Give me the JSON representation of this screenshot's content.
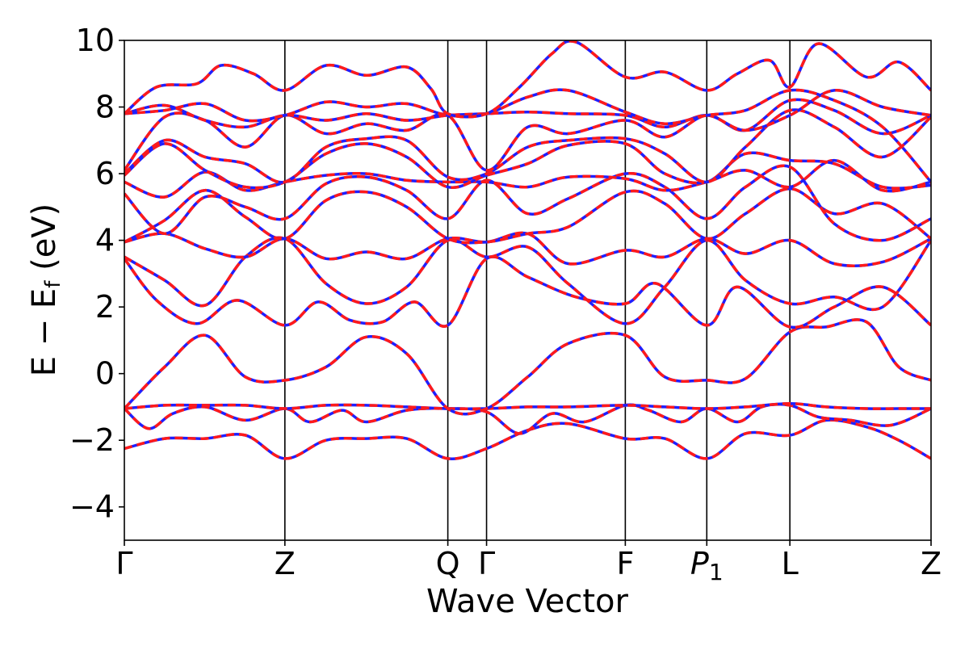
{
  "chart_data": {
    "type": "line",
    "title": "",
    "xlabel": "Wave Vector",
    "ylabel": "E − Ef (eV)",
    "ylabel_parts": {
      "main": "E − E",
      "sub": "f",
      "unit": " (eV)"
    },
    "ylim": [
      -5,
      10
    ],
    "yticks": [
      -4,
      -2,
      0,
      2,
      4,
      6,
      8,
      10
    ],
    "ytick_labels": [
      "−4",
      "−2",
      "0",
      "2",
      "4",
      "6",
      "8",
      "10"
    ],
    "xlim": [
      0,
      10
    ],
    "high_symmetry_points": [
      {
        "label": "Γ",
        "x": 0.0
      },
      {
        "label": "Z",
        "x": 1.99
      },
      {
        "label": "Q",
        "x": 4.01
      },
      {
        "label": "Γ",
        "x": 4.49
      },
      {
        "label": "F",
        "x": 6.21
      },
      {
        "label": "P1",
        "x": 7.22,
        "label_parts": {
          "main": "P",
          "sub": "1"
        }
      },
      {
        "label": "L",
        "x": 8.25
      },
      {
        "label": "Z",
        "x": 10.0
      }
    ],
    "line_styles": [
      {
        "name": "blue solid",
        "color": "#1f1fff",
        "dash": "solid"
      },
      {
        "name": "red dashed",
        "color": "#ff1a1a",
        "dash": "dashed"
      }
    ],
    "grid": false,
    "legend": "none",
    "bands": [
      {
        "x": [
          0,
          0.5,
          1.0,
          1.5,
          1.99,
          2.5,
          3.0,
          3.5,
          4.01,
          4.49,
          5.0,
          5.5,
          6.21,
          6.7,
          7.22,
          7.7,
          8.25,
          8.7,
          9.2,
          9.6,
          10.0
        ],
        "y": [
          -2.25,
          -1.95,
          -1.95,
          -1.85,
          -2.55,
          -2.0,
          -1.95,
          -1.95,
          -2.55,
          -2.25,
          -1.7,
          -1.5,
          -1.95,
          -1.95,
          -2.55,
          -1.8,
          -1.85,
          -1.4,
          -1.6,
          -2.0,
          -2.55
        ]
      },
      {
        "x": [
          0,
          0.3,
          0.6,
          1.0,
          1.5,
          1.99,
          2.3,
          2.7,
          3.0,
          3.5,
          4.01,
          4.49,
          4.9,
          5.3,
          5.7,
          6.21,
          6.5,
          6.9,
          7.22,
          7.6,
          7.9,
          8.25,
          8.6,
          9.0,
          9.5,
          10.0
        ],
        "y": [
          -1.05,
          -1.65,
          -1.2,
          -1.0,
          -1.4,
          -1.05,
          -1.45,
          -1.1,
          -1.45,
          -1.1,
          -1.05,
          -1.15,
          -1.8,
          -1.2,
          -1.45,
          -0.95,
          -1.1,
          -1.45,
          -1.05,
          -1.45,
          -1.0,
          -0.95,
          -1.3,
          -1.4,
          -1.55,
          -1.05
        ]
      },
      {
        "x": [
          0,
          0.5,
          1.0,
          1.5,
          1.99,
          2.5,
          3.0,
          3.5,
          4.01,
          4.49,
          5.0,
          5.5,
          6.21,
          6.7,
          7.22,
          7.7,
          8.25,
          8.7,
          9.2,
          9.6,
          10.0
        ],
        "y": [
          -1.05,
          -0.95,
          -0.95,
          -0.95,
          -1.05,
          -0.95,
          -0.95,
          -1.0,
          -1.05,
          -1.05,
          -1.0,
          -1.0,
          -0.95,
          -1.0,
          -1.05,
          -1.0,
          -0.9,
          -1.0,
          -1.05,
          -1.05,
          -1.05
        ]
      },
      {
        "x": [
          0,
          0.5,
          1.0,
          1.5,
          1.99,
          2.5,
          3.0,
          3.5,
          4.01,
          4.49,
          5.0,
          5.5,
          6.21,
          6.7,
          7.22,
          7.7,
          8.25,
          8.7,
          9.2,
          9.6,
          10.0
        ],
        "y": [
          -1.05,
          0.2,
          1.15,
          -0.1,
          -0.2,
          0.2,
          1.1,
          0.6,
          -1.05,
          -1.05,
          -0.1,
          0.9,
          1.15,
          -0.1,
          -0.2,
          -0.15,
          1.25,
          1.4,
          1.55,
          0.2,
          -0.2
        ]
      },
      {
        "x": [
          0,
          0.4,
          0.9,
          1.4,
          1.99,
          2.4,
          2.8,
          3.2,
          3.6,
          4.01,
          4.49,
          5.0,
          5.6,
          6.21,
          6.6,
          7.22,
          7.6,
          8.25,
          8.8,
          9.4,
          10.0
        ],
        "y": [
          3.45,
          2.2,
          1.5,
          2.2,
          1.45,
          2.15,
          1.6,
          1.55,
          2.15,
          1.45,
          3.45,
          2.9,
          2.3,
          2.1,
          2.7,
          1.45,
          2.6,
          1.4,
          2.0,
          2.6,
          1.45
        ]
      },
      {
        "x": [
          0,
          0.5,
          1.0,
          1.5,
          1.99,
          2.5,
          3.0,
          3.5,
          4.01,
          4.49,
          5.0,
          5.5,
          6.21,
          6.7,
          7.22,
          7.7,
          8.25,
          8.8,
          9.4,
          10.0
        ],
        "y": [
          3.5,
          2.8,
          2.05,
          3.5,
          4.05,
          2.7,
          2.1,
          2.6,
          4.0,
          3.5,
          3.8,
          2.7,
          1.5,
          2.6,
          4.0,
          2.8,
          2.1,
          2.3,
          2.0,
          4.0
        ]
      },
      {
        "x": [
          0,
          0.5,
          1.0,
          1.5,
          1.99,
          2.5,
          3.0,
          3.5,
          4.01,
          4.49,
          5.0,
          5.5,
          6.21,
          6.7,
          7.22,
          7.7,
          8.25,
          8.8,
          9.4,
          10.0
        ],
        "y": [
          3.95,
          4.2,
          3.75,
          3.5,
          4.05,
          3.45,
          3.65,
          3.45,
          4.05,
          3.95,
          4.2,
          3.3,
          3.7,
          3.5,
          4.05,
          3.6,
          4.0,
          3.3,
          3.35,
          4.05
        ]
      },
      {
        "x": [
          0,
          0.5,
          1.0,
          1.5,
          1.99,
          2.5,
          3.0,
          3.5,
          4.01,
          4.49,
          5.0,
          5.5,
          6.21,
          6.7,
          7.22,
          7.7,
          8.25,
          8.8,
          9.4,
          10.0
        ],
        "y": [
          3.95,
          4.6,
          5.5,
          4.7,
          4.05,
          5.2,
          5.45,
          5.0,
          4.05,
          3.95,
          4.2,
          4.4,
          5.45,
          5.1,
          4.05,
          4.8,
          5.55,
          4.8,
          5.1,
          4.05
        ]
      },
      {
        "x": [
          0,
          0.5,
          1.0,
          1.5,
          1.99,
          2.5,
          3.0,
          3.5,
          4.01,
          4.49,
          5.0,
          5.5,
          6.21,
          6.7,
          7.22,
          7.7,
          8.25,
          8.8,
          9.4,
          10.0
        ],
        "y": [
          5.4,
          4.2,
          5.3,
          5.0,
          4.65,
          5.7,
          5.9,
          5.5,
          4.65,
          5.8,
          4.8,
          5.25,
          6.0,
          5.6,
          4.65,
          5.6,
          6.2,
          4.5,
          4.0,
          4.65
        ]
      },
      {
        "x": [
          0,
          0.5,
          1.0,
          1.5,
          1.99,
          2.5,
          3.0,
          3.5,
          4.01,
          4.49,
          5.0,
          5.5,
          6.21,
          6.7,
          7.22,
          7.7,
          8.25,
          8.8,
          9.4,
          10.0
        ],
        "y": [
          5.75,
          5.3,
          6.05,
          5.5,
          5.75,
          5.95,
          6.0,
          5.8,
          5.75,
          5.75,
          5.6,
          5.9,
          5.85,
          5.5,
          5.75,
          6.1,
          5.6,
          6.4,
          5.5,
          5.75
        ]
      },
      {
        "x": [
          0,
          0.5,
          1.0,
          1.5,
          1.99,
          2.5,
          3.0,
          3.5,
          4.01,
          4.49,
          5.0,
          5.5,
          6.21,
          6.7,
          7.22,
          7.7,
          8.25,
          8.8,
          9.4,
          10.0
        ],
        "y": [
          5.95,
          6.9,
          6.1,
          5.6,
          5.75,
          6.6,
          6.9,
          6.5,
          5.6,
          5.95,
          6.3,
          6.85,
          6.9,
          6.0,
          5.75,
          6.6,
          6.4,
          6.3,
          5.6,
          5.65
        ]
      },
      {
        "x": [
          0,
          0.5,
          1.0,
          1.5,
          1.99,
          2.5,
          3.0,
          3.5,
          4.01,
          4.49,
          5.0,
          5.5,
          6.21,
          6.7,
          7.22,
          7.7,
          8.25,
          8.8,
          9.4,
          10.0
        ],
        "y": [
          6.0,
          7.0,
          6.5,
          6.3,
          5.75,
          6.8,
          7.05,
          7.0,
          5.9,
          6.0,
          6.8,
          7.0,
          7.05,
          6.6,
          5.75,
          6.8,
          7.9,
          7.4,
          6.5,
          7.7
        ]
      },
      {
        "x": [
          0,
          0.5,
          1.0,
          1.5,
          1.99,
          2.5,
          3.0,
          3.5,
          4.01,
          4.49,
          5.0,
          5.5,
          6.21,
          6.7,
          7.22,
          7.7,
          8.25,
          8.8,
          9.4,
          10.0
        ],
        "y": [
          6.1,
          7.7,
          7.6,
          6.8,
          7.75,
          7.2,
          7.5,
          7.3,
          7.75,
          6.1,
          7.4,
          7.2,
          7.6,
          7.1,
          7.75,
          7.3,
          8.2,
          7.9,
          7.2,
          7.75
        ]
      },
      {
        "x": [
          0,
          0.5,
          1.0,
          1.5,
          1.99,
          2.5,
          3.0,
          3.5,
          4.01,
          4.49,
          5.0,
          5.5,
          6.21,
          6.7,
          7.22,
          7.7,
          8.25,
          8.8,
          9.4,
          10.0
        ],
        "y": [
          7.8,
          8.05,
          7.6,
          7.4,
          7.75,
          7.6,
          7.8,
          7.6,
          7.75,
          7.8,
          7.85,
          7.8,
          7.75,
          7.4,
          7.75,
          7.3,
          7.75,
          8.5,
          8.0,
          7.75
        ]
      },
      {
        "x": [
          0,
          0.5,
          1.0,
          1.5,
          1.99,
          2.5,
          3.0,
          3.5,
          4.01,
          4.49,
          5.0,
          5.5,
          6.21,
          6.7,
          7.22,
          7.7,
          8.25,
          8.8,
          9.4,
          10.0
        ],
        "y": [
          7.8,
          7.9,
          8.1,
          7.6,
          7.75,
          8.15,
          8.0,
          8.1,
          7.75,
          7.8,
          8.3,
          8.5,
          7.85,
          7.5,
          7.75,
          7.9,
          8.5,
          8.2,
          7.4,
          5.75
        ]
      },
      {
        "x": [
          0,
          0.4,
          0.9,
          1.2,
          1.6,
          1.99,
          2.5,
          3.0,
          3.5,
          3.8,
          4.01,
          4.49,
          4.9,
          5.3,
          5.6,
          6.21,
          6.7,
          7.22,
          7.6,
          8.0,
          8.25,
          8.6,
          9.2,
          9.6,
          10.0
        ],
        "y": [
          7.8,
          8.6,
          8.7,
          9.25,
          9.0,
          8.5,
          9.25,
          8.95,
          9.2,
          8.55,
          7.8,
          7.8,
          8.6,
          9.6,
          9.95,
          8.9,
          9.05,
          8.5,
          9.0,
          9.4,
          8.6,
          9.9,
          8.9,
          9.35,
          8.5
        ]
      }
    ]
  }
}
